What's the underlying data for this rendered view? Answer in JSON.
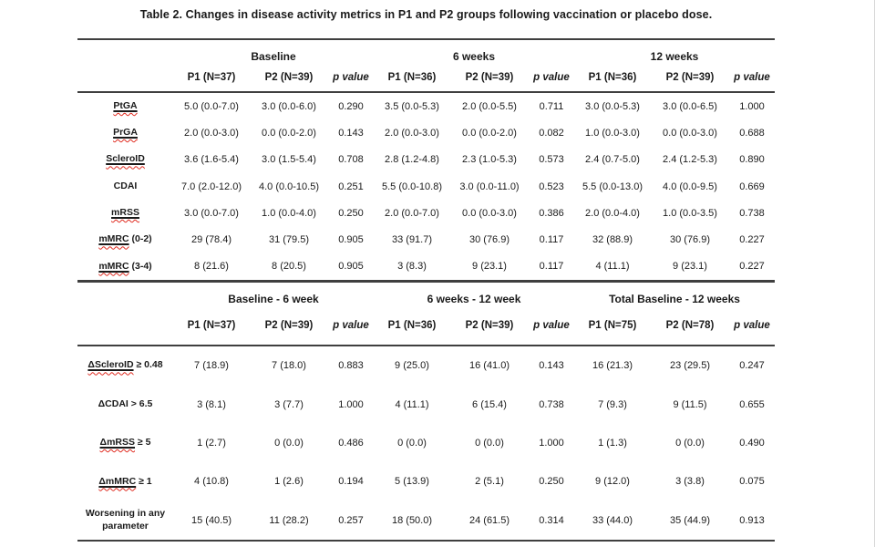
{
  "title": "Table 2. Changes in disease activity metrics in P1 and P2 groups following vaccination or placebo dose.",
  "colors": {
    "rule": "#3f3f3f",
    "text": "#1a1a1a",
    "squiggle_red": "#e02b20",
    "background": "#ffffff"
  },
  "sections": [
    {
      "group_headers": [
        "Baseline",
        "6 weeks",
        "12 weeks"
      ],
      "col_headers": [
        "P1 (N=37)",
        "P2 (N=39)",
        "p value",
        "P1 (N=36)",
        "P2 (N=39)",
        "p value",
        "P1 (N=36)",
        "P2 (N=39)",
        "p value"
      ],
      "rows": [
        {
          "label_main": "PtGA",
          "label_rest": "",
          "cells": [
            "5.0 (0.0-7.0)",
            "3.0 (0.0-6.0)",
            "0.290",
            "3.5 (0.0-5.3)",
            "2.0 (0.0-5.5)",
            "0.711",
            "3.0 (0.0-5.3)",
            "3.0 (0.0-6.5)",
            "1.000"
          ]
        },
        {
          "label_main": "PrGA",
          "label_rest": "",
          "cells": [
            "2.0 (0.0-3.0)",
            "0.0 (0.0-2.0)",
            "0.143",
            "2.0 (0.0-3.0)",
            "0.0 (0.0-2.0)",
            "0.082",
            "1.0 (0.0-3.0)",
            "0.0 (0.0-3.0)",
            "0.688"
          ]
        },
        {
          "label_main": "ScleroID",
          "label_rest": "",
          "cells": [
            "3.6 (1.6-5.4)",
            "3.0 (1.5-5.4)",
            "0.708",
            "2.8 (1.2-4.8)",
            "2.3 (1.0-5.3)",
            "0.573",
            "2.4 (0.7-5.0)",
            "2.4 (1.2-5.3)",
            "0.890"
          ]
        },
        {
          "label_main": "",
          "label_rest": "CDAI",
          "cells": [
            "7.0 (2.0-12.0)",
            "4.0 (0.0-10.5)",
            "0.251",
            "5.5 (0.0-10.8)",
            "3.0 (0.0-11.0)",
            "0.523",
            "5.5 (0.0-13.0)",
            "4.0 (0.0-9.5)",
            "0.669"
          ]
        },
        {
          "label_main": "mRSS",
          "label_rest": "",
          "cells": [
            "3.0 (0.0-7.0)",
            "1.0 (0.0-4.0)",
            "0.250",
            "2.0 (0.0-7.0)",
            "0.0 (0.0-3.0)",
            "0.386",
            "2.0 (0.0-4.0)",
            "1.0 (0.0-3.5)",
            "0.738"
          ]
        },
        {
          "label_main": "mMRC",
          "label_rest": " (0-2)",
          "cells": [
            "29 (78.4)",
            "31 (79.5)",
            "0.905",
            "33 (91.7)",
            "30 (76.9)",
            "0.117",
            "32 (88.9)",
            "30 (76.9)",
            "0.227"
          ]
        },
        {
          "label_main": "mMRC",
          "label_rest": " (3-4)",
          "cells": [
            "8 (21.6)",
            "8 (20.5)",
            "0.905",
            "3 (8.3)",
            "9 (23.1)",
            "0.117",
            "4 (11.1)",
            "9 (23.1)",
            "0.227"
          ]
        }
      ]
    },
    {
      "group_headers": [
        "Baseline - 6 week",
        "6 weeks - 12 week",
        "Total Baseline - 12 weeks"
      ],
      "col_headers": [
        "P1 (N=37)",
        "P2 (N=39)",
        "p value",
        "P1 (N=36)",
        "P2 (N=39)",
        "p value",
        "P1 (N=75)",
        "P2 (N=78)",
        "p value"
      ],
      "rows": [
        {
          "label_main": "ΔScleroID",
          "label_rest": " ≥ 0.48",
          "cells": [
            "7 (18.9)",
            "7 (18.0)",
            "0.883",
            "9 (25.0)",
            "16 (41.0)",
            "0.143",
            "16 (21.3)",
            "23 (29.5)",
            "0.247"
          ]
        },
        {
          "label_main": "",
          "label_rest": "ΔCDAI > 6.5",
          "cells": [
            "3 (8.1)",
            "3 (7.7)",
            "1.000",
            "4 (11.1)",
            "6 (15.4)",
            "0.738",
            "7 (9.3)",
            "9 (11.5)",
            "0.655"
          ]
        },
        {
          "label_main": "ΔmRSS",
          "label_rest": " ≥ 5",
          "cells": [
            "1 (2.7)",
            "0 (0.0)",
            "0.486",
            "0 (0.0)",
            "0 (0.0)",
            "1.000",
            "1 (1.3)",
            "0 (0.0)",
            "0.490"
          ]
        },
        {
          "label_main": "ΔmMRC",
          "label_rest": " ≥ 1",
          "cells": [
            "4 (10.8)",
            "1 (2.6)",
            "0.194",
            "5 (13.9)",
            "2 (5.1)",
            "0.250",
            "9 (12.0)",
            "3 (3.8)",
            "0.075"
          ]
        },
        {
          "label_main": "",
          "label_rest": "Worsening in any parameter",
          "cells": [
            "15 (40.5)",
            "11 (28.2)",
            "0.257",
            "18 (50.0)",
            "24 (61.5)",
            "0.314",
            "33 (44.0)",
            "35 (44.9)",
            "0.913"
          ]
        }
      ]
    }
  ]
}
